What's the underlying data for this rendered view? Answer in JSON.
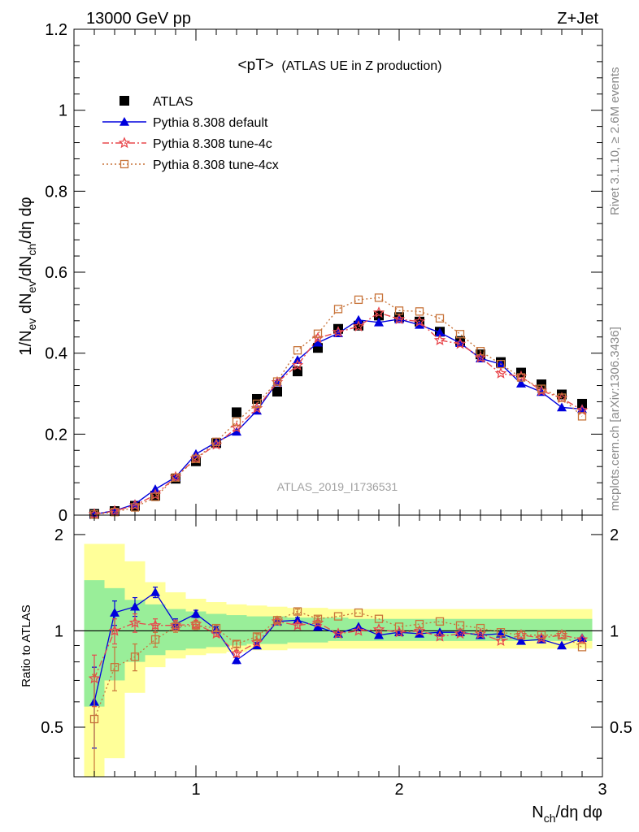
{
  "header": {
    "left": "13000 GeV pp",
    "right": "Z+Jet"
  },
  "side_labels": {
    "rivet": "Rivet 3.1.10, ≥ 2.6M events",
    "mcplots": "mcplots.cern.ch [arXiv:1306.3436]"
  },
  "watermark": "ATLAS_2019_I1736531",
  "colors": {
    "atlas": "#000000",
    "default": "#0000dd",
    "tune4c": "#e8484d",
    "tune4cx": "#c8743a",
    "band_inner": "#99ee99",
    "band_outer": "#ffff99"
  },
  "chart_data": [
    {
      "type": "line",
      "title": "<pT> (ATLAS UE in Z production)",
      "title_main": "<pT>",
      "title_sub": "(ATLAS UE in Z production)",
      "ylabel": "1/N_ev dN_ev/dN_ch/dη dφ",
      "xlim": [
        0.4,
        3.0
      ],
      "ylim": [
        0,
        1.2
      ],
      "yticks": [
        "0",
        "0.2",
        "0.4",
        "0.6",
        "0.8",
        "1",
        "1.2"
      ],
      "x": [
        0.5,
        0.6,
        0.7,
        0.8,
        0.9,
        1.0,
        1.1,
        1.2,
        1.3,
        1.4,
        1.5,
        1.6,
        1.7,
        1.8,
        1.9,
        2.0,
        2.1,
        2.2,
        2.3,
        2.4,
        2.5,
        2.6,
        2.7,
        2.8,
        2.9
      ],
      "series": [
        {
          "name": "ATLAS",
          "values": [
            0.003,
            0.01,
            0.023,
            0.048,
            0.09,
            0.133,
            0.178,
            0.254,
            0.287,
            0.305,
            0.355,
            0.413,
            0.46,
            0.468,
            0.493,
            0.489,
            0.478,
            0.453,
            0.43,
            0.397,
            0.378,
            0.352,
            0.323,
            0.298,
            0.275
          ]
        },
        {
          "name": "Pythia 8.308 default",
          "values": [
            0.002,
            0.011,
            0.027,
            0.064,
            0.094,
            0.151,
            0.18,
            0.206,
            0.258,
            0.328,
            0.383,
            0.426,
            0.449,
            0.482,
            0.476,
            0.484,
            0.47,
            0.451,
            0.425,
            0.387,
            0.373,
            0.325,
            0.304,
            0.266,
            0.262
          ]
        },
        {
          "name": "Pythia 8.308 tune-4c",
          "values": [
            0.0022,
            0.01,
            0.024,
            0.05,
            0.094,
            0.14,
            0.174,
            0.216,
            0.264,
            0.328,
            0.37,
            0.437,
            0.452,
            0.466,
            0.5,
            0.484,
            0.478,
            0.432,
            0.423,
            0.389,
            0.35,
            0.342,
            0.307,
            0.289,
            0.259
          ]
        },
        {
          "name": "Pythia 8.308 tune-4cx",
          "values": [
            0.0016,
            0.0076,
            0.019,
            0.045,
            0.093,
            0.139,
            0.181,
            0.231,
            0.275,
            0.33,
            0.407,
            0.448,
            0.509,
            0.532,
            0.537,
            0.505,
            0.503,
            0.486,
            0.447,
            0.405,
            0.373,
            0.34,
            0.312,
            0.29,
            0.244
          ]
        }
      ],
      "legend": "top-left"
    },
    {
      "type": "line",
      "ylabel": "Ratio to ATLAS",
      "xlabel": "N_ch/dη dφ",
      "xlim": [
        0.4,
        3.0
      ],
      "ylim": [
        0.35,
        2.3
      ],
      "xticks": [
        "1",
        "2",
        "3"
      ],
      "yticks": [
        "0.5",
        "1",
        "2"
      ],
      "x": [
        0.5,
        0.6,
        0.7,
        0.8,
        0.9,
        1.0,
        1.1,
        1.2,
        1.3,
        1.4,
        1.5,
        1.6,
        1.7,
        1.8,
        1.9,
        2.0,
        2.1,
        2.2,
        2.3,
        2.4,
        2.5,
        2.6,
        2.7,
        2.8,
        2.9
      ],
      "band_inner": [
        [
          0.58,
          1.44
        ],
        [
          0.7,
          1.36
        ],
        [
          0.8,
          1.25
        ],
        [
          0.84,
          1.21
        ],
        [
          0.87,
          1.17
        ],
        [
          0.88,
          1.15
        ],
        [
          0.89,
          1.13
        ],
        [
          0.9,
          1.12
        ],
        [
          0.91,
          1.11
        ],
        [
          0.91,
          1.11
        ],
        [
          0.92,
          1.1
        ],
        [
          0.92,
          1.1
        ],
        [
          0.93,
          1.1
        ],
        [
          0.93,
          1.09
        ],
        [
          0.93,
          1.09
        ],
        [
          0.93,
          1.09
        ],
        [
          0.93,
          1.09
        ],
        [
          0.93,
          1.09
        ],
        [
          0.93,
          1.09
        ],
        [
          0.93,
          1.09
        ],
        [
          0.93,
          1.09
        ],
        [
          0.93,
          1.09
        ],
        [
          0.93,
          1.09
        ],
        [
          0.93,
          1.09
        ],
        [
          0.93,
          1.09
        ]
      ],
      "band_outer": [
        [
          0.34,
          1.87
        ],
        [
          0.4,
          1.87
        ],
        [
          0.64,
          1.65
        ],
        [
          0.77,
          1.42
        ],
        [
          0.82,
          1.32
        ],
        [
          0.84,
          1.26
        ],
        [
          0.85,
          1.23
        ],
        [
          0.86,
          1.21
        ],
        [
          0.87,
          1.2
        ],
        [
          0.87,
          1.19
        ],
        [
          0.88,
          1.18
        ],
        [
          0.88,
          1.18
        ],
        [
          0.88,
          1.17
        ],
        [
          0.88,
          1.17
        ],
        [
          0.88,
          1.17
        ],
        [
          0.88,
          1.17
        ],
        [
          0.88,
          1.17
        ],
        [
          0.88,
          1.17
        ],
        [
          0.88,
          1.17
        ],
        [
          0.88,
          1.17
        ],
        [
          0.88,
          1.17
        ],
        [
          0.88,
          1.17
        ],
        [
          0.88,
          1.17
        ],
        [
          0.88,
          1.17
        ],
        [
          0.88,
          1.17
        ]
      ],
      "series": [
        {
          "name": "Pythia 8.308 default",
          "values": [
            0.6,
            1.14,
            1.19,
            1.32,
            1.05,
            1.13,
            1.01,
            0.81,
            0.9,
            1.07,
            1.08,
            1.03,
            0.98,
            1.03,
            0.97,
            0.99,
            0.98,
            0.99,
            0.99,
            0.97,
            0.98,
            0.93,
            0.94,
            0.9,
            0.95
          ]
        },
        {
          "name": "Pythia 8.308 tune-4c",
          "values": [
            0.71,
            1.0,
            1.06,
            1.04,
            1.04,
            1.05,
            0.98,
            0.85,
            0.92,
            1.07,
            1.04,
            1.06,
            0.98,
            1.0,
            1.01,
            0.99,
            1.0,
            0.96,
            0.98,
            0.98,
            0.93,
            0.97,
            0.95,
            0.97,
            0.94
          ]
        },
        {
          "name": "Pythia 8.308 tune-4cx",
          "values": [
            0.53,
            0.77,
            0.83,
            0.94,
            1.03,
            1.04,
            1.02,
            0.91,
            0.96,
            1.08,
            1.15,
            1.09,
            1.11,
            1.14,
            1.09,
            1.03,
            1.05,
            1.07,
            1.04,
            1.02,
            0.99,
            0.97,
            0.97,
            0.97,
            0.89
          ]
        }
      ],
      "errors": {
        "default": [
          0.17,
          0.1,
          0.08,
          0.05,
          0.04,
          0.03,
          0.02,
          0.02,
          0.02,
          0.02,
          0.02,
          0.02,
          0.01,
          0.01,
          0.01,
          0.01,
          0.01,
          0.01,
          0.01,
          0.01,
          0.01,
          0.01,
          0.01,
          0.01,
          0.01
        ],
        "tune4c": [
          0.13,
          0.09,
          0.07,
          0.05,
          0.04,
          0.03,
          0.02,
          0.02,
          0.02,
          0.02,
          0.02,
          0.02,
          0.01,
          0.01,
          0.01,
          0.01,
          0.01,
          0.01,
          0.01,
          0.01,
          0.01,
          0.01,
          0.01,
          0.01,
          0.01
        ],
        "tune4cx": [
          0.2,
          0.12,
          0.08,
          0.05,
          0.04,
          0.03,
          0.02,
          0.02,
          0.02,
          0.02,
          0.02,
          0.02,
          0.01,
          0.01,
          0.01,
          0.01,
          0.01,
          0.01,
          0.01,
          0.01,
          0.01,
          0.01,
          0.01,
          0.01,
          0.01
        ]
      }
    }
  ]
}
